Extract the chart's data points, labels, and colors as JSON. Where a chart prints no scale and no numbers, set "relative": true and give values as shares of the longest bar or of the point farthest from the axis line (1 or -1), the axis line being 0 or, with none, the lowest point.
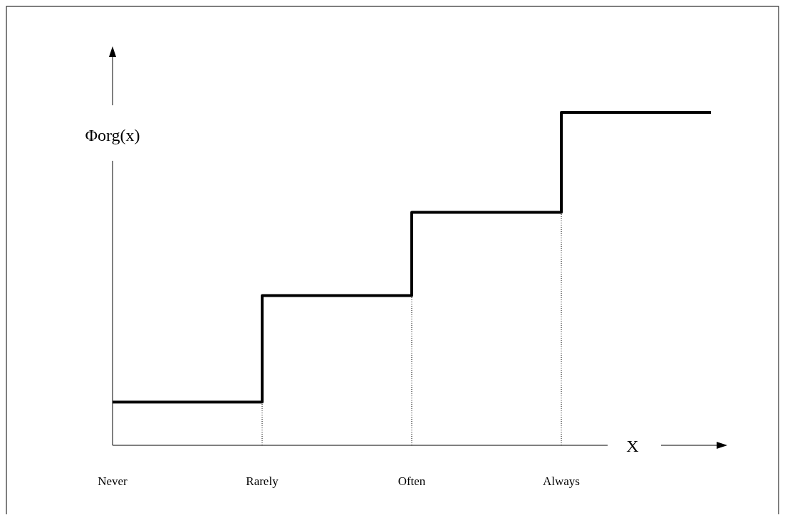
{
  "chart_data": {
    "type": "step",
    "relative": true,
    "ylabel": "Φorg(x)",
    "xlabel": "X",
    "categories": [
      "Never",
      "Rarely",
      "Often",
      "Always",
      null
    ],
    "series": [
      {
        "color": "#000000",
        "values": [
          0.13,
          0.45,
          0.7,
          1,
          1
        ]
      }
    ],
    "ref_lines": [
      {
        "axis": "x",
        "value": "Rarely",
        "line_style": "dotted",
        "color": "#000000"
      },
      {
        "axis": "x",
        "value": "Often",
        "line_style": "dotted",
        "color": "#000000"
      },
      {
        "axis": "x",
        "value": "Always",
        "line_style": "dotted",
        "color": "#000000"
      }
    ],
    "line_style": "solid"
  }
}
